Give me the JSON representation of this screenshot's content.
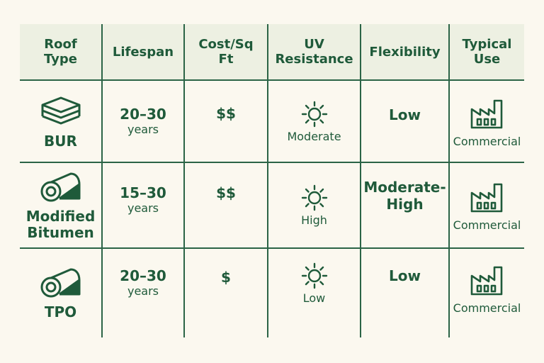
{
  "headers": [
    "Roof\nType",
    "Lifespan",
    "Cost/Sq\nFt",
    "UV\nResistance",
    "Flexibility",
    "Typical\nUse"
  ],
  "rows": [
    {
      "roof_type": "BUR",
      "roof_icon": "layers-icon",
      "lifespan_range": "20–30",
      "lifespan_unit": "years",
      "cost": "$$",
      "uv_icon": "sun-icon",
      "uv": "Moderate",
      "flexibility": "Low",
      "use_icon": "factory-icon",
      "use": "Commercial"
    },
    {
      "roof_type": "Modified\nBitumen",
      "roof_icon": "roll-icon",
      "lifespan_range": "15–30",
      "lifespan_unit": "years",
      "cost": "$$",
      "uv_icon": "sun-icon",
      "uv": "High",
      "flexibility": "Moderate-\nHigh",
      "use_icon": "factory-icon",
      "use": "Commercial"
    },
    {
      "roof_type": "TPO",
      "roof_icon": "roll-icon",
      "lifespan_range": "20–30",
      "lifespan_unit": "years",
      "cost": "$",
      "uv_icon": "sun-icon",
      "uv": "Low",
      "flexibility": "Low",
      "use_icon": "factory-icon",
      "use": "Commercial"
    }
  ],
  "colors": {
    "accent": "#1f5a3a",
    "header_bg": "#edf0e2",
    "page_bg": "#fbf8ef"
  }
}
